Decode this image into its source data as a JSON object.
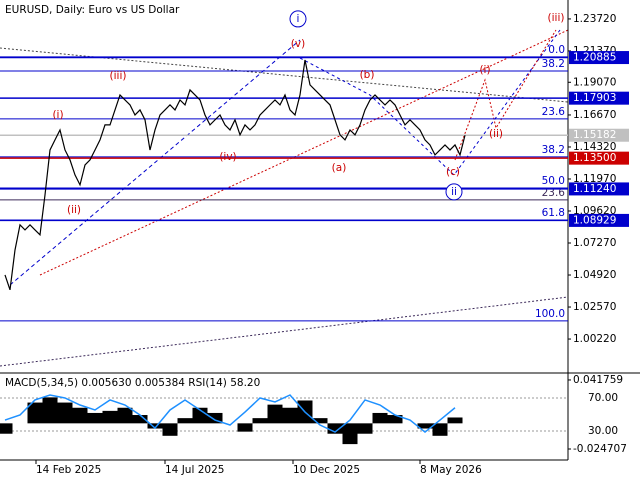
{
  "chart_data": [
    {
      "type": "line",
      "title": "EURUSD, Daily:  Euro vs US Dollar",
      "color": "#000000",
      "values": [
        1.0493,
        1.0383,
        1.0676,
        1.086,
        1.0823,
        1.086,
        1.0823,
        1.0787,
        1.108,
        1.141,
        1.1484,
        1.1557,
        1.141,
        1.1337,
        1.1227,
        1.1154,
        1.13,
        1.1337,
        1.141,
        1.1484,
        1.1594,
        1.1594,
        1.1704,
        1.1814,
        1.1777,
        1.1741,
        1.1667,
        1.1704,
        1.1631,
        1.141,
        1.1557,
        1.1667,
        1.1704,
        1.1741,
        1.1704,
        1.1777,
        1.1741,
        1.1851,
        1.1814,
        1.1777,
        1.1667,
        1.1594,
        1.1631,
        1.1667,
        1.1594,
        1.1557,
        1.1631,
        1.1521,
        1.1594,
        1.1557,
        1.1594,
        1.1667,
        1.1704,
        1.1741,
        1.1777,
        1.1741,
        1.1814,
        1.1704,
        1.1667,
        1.1814,
        1.2071,
        1.1888,
        1.1851,
        1.1814,
        1.1777,
        1.1741,
        1.1631,
        1.1521,
        1.1484,
        1.1557,
        1.1521,
        1.1594,
        1.1704,
        1.1777,
        1.1814,
        1.1777,
        1.1741,
        1.1777,
        1.1741,
        1.1667,
        1.1594,
        1.1631,
        1.1594,
        1.1557,
        1.1484,
        1.1447,
        1.1374,
        1.141,
        1.1447,
        1.141,
        1.1447,
        1.1374,
        1.1518
      ],
      "xlim": [
        -1,
        112.6
      ],
      "xticks": [
        {
          "value": 6.2,
          "label": "14 Feb 2025"
        },
        {
          "value": 32,
          "label": "14 Jul 2025"
        },
        {
          "value": 57.6,
          "label": "10 Dec 2025"
        },
        {
          "value": 83,
          "label": "8 May 2026"
        }
      ],
      "ylim": [
        0.978,
        1.2511
      ],
      "yticks": [
        {
          "value": 1.2372,
          "label": "1.23720"
        },
        {
          "value": 1.2137,
          "label": "1.21370"
        },
        {
          "value": 1.1907,
          "label": "1.19070"
        },
        {
          "value": 1.1667,
          "label": "1.16670"
        },
        {
          "value": 1.1432,
          "label": "1.14320"
        },
        {
          "value": 1.1197,
          "label": "1.11970"
        },
        {
          "value": 1.0962,
          "label": "1.09620"
        },
        {
          "value": 1.0727,
          "label": "1.07270"
        },
        {
          "value": 1.0492,
          "label": "1.04920"
        },
        {
          "value": 1.0257,
          "label": "1.02570"
        },
        {
          "value": 1.0022,
          "label": "1.00220"
        }
      ],
      "levels": [
        {
          "value": 1.20885,
          "label": "1.20885",
          "color": "#0000cc"
        },
        {
          "value": 1.17903,
          "label": "1.17903",
          "color": "#0000cc"
        },
        {
          "value": 1.15182,
          "label": "1.15182",
          "color": "#c0c0c0"
        },
        {
          "value": 1.135,
          "label": "1.13500",
          "color": "#cc0000"
        },
        {
          "value": 1.1124,
          "label": "1.11240",
          "color": "#0000cc"
        },
        {
          "value": 1.08929,
          "label": "1.08929",
          "color": "#0000cc"
        }
      ],
      "fib_levels": [
        {
          "label": "0.0",
          "y": 1.2093,
          "color": "#0000cc"
        },
        {
          "label": "38.2",
          "y": 1.199,
          "color": "#0000cc"
        },
        {
          "label": "23.6",
          "y": 1.1638,
          "color": "#0000cc"
        },
        {
          "label": "38.2",
          "y": 1.1359,
          "color": "#0000cc"
        },
        {
          "label": "50.0",
          "y": 1.1131,
          "color": "#0000cc"
        },
        {
          "label": "23.6",
          "y": 1.1044,
          "color": "#3c2a5a"
        },
        {
          "label": "61.8",
          "y": 1.0896,
          "color": "#0000cc"
        },
        {
          "label": "100.0",
          "y": 1.0155,
          "color": "#0000cc"
        }
      ],
      "wave_labels": [
        {
          "text": "i",
          "x": 58.6,
          "y": 1.2372,
          "color": "#0000cc",
          "circled": true
        },
        {
          "text": "ii",
          "x": 89.8,
          "y": 1.1102,
          "color": "#0000cc",
          "circled": true
        },
        {
          "text": "(iii)",
          "x": 110.2,
          "y": 1.2379,
          "color": "#cc0000"
        },
        {
          "text": "(i)",
          "x": 10.6,
          "y": 1.1667,
          "color": "#cc0000"
        },
        {
          "text": "(ii)",
          "x": 13.8,
          "y": 1.097,
          "color": "#cc0000"
        },
        {
          "text": "(iii)",
          "x": 22.6,
          "y": 1.1954,
          "color": "#cc0000"
        },
        {
          "text": "(iv)",
          "x": 44.6,
          "y": 1.1359,
          "color": "#cc0000"
        },
        {
          "text": "(v)",
          "x": 58.6,
          "y": 1.2189,
          "color": "#cc0000"
        },
        {
          "text": "(a)",
          "x": 66.8,
          "y": 1.1278,
          "color": "#cc0000"
        },
        {
          "text": "(b)",
          "x": 72.4,
          "y": 1.1961,
          "color": "#cc0000"
        },
        {
          "text": "(c)",
          "x": 89.6,
          "y": 1.1249,
          "color": "#cc0000"
        },
        {
          "text": "(i)",
          "x": 96,
          "y": 1.1998,
          "color": "#cc0000"
        },
        {
          "text": "(ii)",
          "x": 98.2,
          "y": 1.1528,
          "color": "#cc0000"
        }
      ]
    },
    {
      "type": "indicator",
      "title": "MACD(5,34,5) 0.005630 0.005384 RSI(14) 58.20",
      "xlim": [
        -0.333,
        37.533
      ],
      "ylim": [
        -5,
        99
      ],
      "yticks": [
        {
          "value": 70,
          "label": "70.00"
        },
        {
          "value": 30,
          "label": "30.00"
        }
      ],
      "y2lim": [
        -0.0353,
        0.0475
      ],
      "y2ticks": [
        0.041759,
        -0.024707
      ],
      "series": [
        {
          "type": "bar",
          "axis": "y2",
          "color": "#000000",
          "values": [
            -0.01,
            0.0,
            0.02,
            0.025,
            0.02,
            0.015,
            0.01,
            0.012,
            0.015,
            0.008,
            -0.005,
            -0.012,
            0.005,
            0.015,
            0.01,
            0.0,
            -0.008,
            0.005,
            0.018,
            0.015,
            0.022,
            0.005,
            -0.01,
            -0.02,
            -0.01,
            0.01,
            0.008,
            0.0,
            -0.005,
            -0.012,
            0.00563
          ]
        },
        {
          "type": "line",
          "color": "#1e90ff",
          "values": [
            43.3,
            49.4,
            67.6,
            73.6,
            70.0,
            61.5,
            55.5,
            67.6,
            61.5,
            49.4,
            33.6,
            55.5,
            67.6,
            55.5,
            43.3,
            37.3,
            53.0,
            70.0,
            65.2,
            73.6,
            53.0,
            37.3,
            28.8,
            43.3,
            67.6,
            61.5,
            49.4,
            43.3,
            28.8,
            43.3,
            58.2
          ]
        }
      ]
    }
  ]
}
